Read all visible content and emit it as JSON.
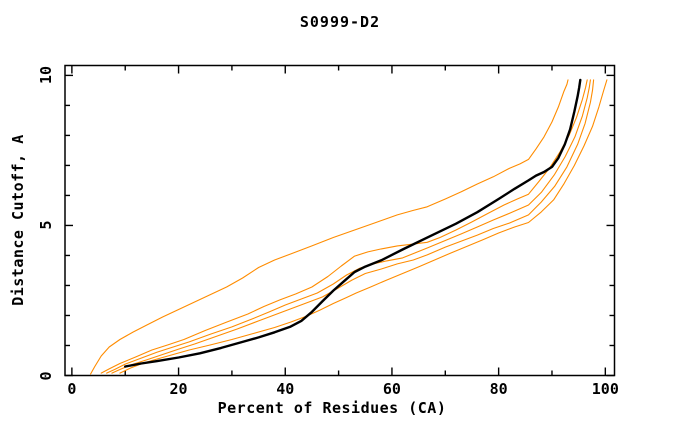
{
  "chart_data": {
    "type": "line",
    "title": "S0999-D2",
    "xlabel": "Percent of Residues (CA)",
    "ylabel": "Distance Cutoff, A",
    "xlim": [
      -1.29,
      101.72
    ],
    "ylim": [
      0,
      10.33
    ],
    "x_major_ticks": [
      0,
      20,
      40,
      60,
      80,
      100
    ],
    "x_minor_ticks": [
      10,
      30,
      50,
      70,
      90
    ],
    "y_major_ticks": [
      0,
      5,
      10
    ],
    "y_minor_ticks": [
      1,
      2,
      3,
      4,
      6,
      7,
      8,
      9
    ],
    "grid": false,
    "legend": "none",
    "axis_color": "#000000",
    "series": [
      {
        "name": "orange-model-1",
        "color": "#ff8c00",
        "width": 1.1,
        "points": [
          [
            3.5,
            0.05
          ],
          [
            4.3,
            0.3
          ],
          [
            5.5,
            0.65
          ],
          [
            7,
            0.95
          ],
          [
            9,
            1.2
          ],
          [
            11.5,
            1.45
          ],
          [
            14,
            1.68
          ],
          [
            17,
            1.95
          ],
          [
            20,
            2.2
          ],
          [
            23,
            2.45
          ],
          [
            26,
            2.7
          ],
          [
            29,
            2.95
          ],
          [
            32,
            3.25
          ],
          [
            35,
            3.6
          ],
          [
            38,
            3.85
          ],
          [
            41,
            4.05
          ],
          [
            45,
            4.32
          ],
          [
            49,
            4.6
          ],
          [
            53,
            4.85
          ],
          [
            57,
            5.1
          ],
          [
            61,
            5.35
          ],
          [
            64,
            5.5
          ],
          [
            66.6,
            5.62
          ],
          [
            70,
            5.88
          ],
          [
            73,
            6.12
          ],
          [
            76,
            6.38
          ],
          [
            79,
            6.62
          ],
          [
            82,
            6.9
          ],
          [
            84,
            7.05
          ],
          [
            85.6,
            7.2
          ],
          [
            87,
            7.55
          ],
          [
            88.5,
            7.95
          ],
          [
            90,
            8.45
          ],
          [
            91.2,
            8.95
          ],
          [
            92.2,
            9.45
          ],
          [
            92.8,
            9.7
          ],
          [
            93,
            9.85
          ]
        ]
      },
      {
        "name": "orange-model-2",
        "color": "#ff8c00",
        "width": 1.1,
        "points": [
          [
            5.5,
            0.08
          ],
          [
            7,
            0.22
          ],
          [
            9,
            0.4
          ],
          [
            12,
            0.62
          ],
          [
            15,
            0.85
          ],
          [
            18,
            1.02
          ],
          [
            21,
            1.2
          ],
          [
            25,
            1.5
          ],
          [
            29,
            1.78
          ],
          [
            33,
            2.05
          ],
          [
            36,
            2.3
          ],
          [
            39,
            2.52
          ],
          [
            42,
            2.72
          ],
          [
            45,
            2.95
          ],
          [
            48,
            3.3
          ],
          [
            50.5,
            3.65
          ],
          [
            53,
            3.98
          ],
          [
            55.5,
            4.12
          ],
          [
            58,
            4.22
          ],
          [
            61,
            4.32
          ],
          [
            64,
            4.38
          ],
          [
            66.6,
            4.44
          ],
          [
            69,
            4.6
          ],
          [
            72,
            4.85
          ],
          [
            75,
            5.12
          ],
          [
            78,
            5.4
          ],
          [
            81,
            5.68
          ],
          [
            83.5,
            5.88
          ],
          [
            85.6,
            6.04
          ],
          [
            87.5,
            6.45
          ],
          [
            89.5,
            6.9
          ],
          [
            91.5,
            7.45
          ],
          [
            93.2,
            8.0
          ],
          [
            94.6,
            8.6
          ],
          [
            95.7,
            9.2
          ],
          [
            96.3,
            9.6
          ],
          [
            96.6,
            9.85
          ]
        ]
      },
      {
        "name": "orange-model-3",
        "color": "#ff8c00",
        "width": 1.1,
        "points": [
          [
            6.5,
            0.08
          ],
          [
            8,
            0.2
          ],
          [
            10,
            0.38
          ],
          [
            13,
            0.58
          ],
          [
            16,
            0.78
          ],
          [
            19,
            0.95
          ],
          [
            22,
            1.12
          ],
          [
            26,
            1.38
          ],
          [
            30,
            1.62
          ],
          [
            34,
            1.9
          ],
          [
            37,
            2.12
          ],
          [
            40,
            2.35
          ],
          [
            43,
            2.55
          ],
          [
            46,
            2.75
          ],
          [
            49,
            3.05
          ],
          [
            51.5,
            3.35
          ],
          [
            54,
            3.58
          ],
          [
            56.5,
            3.72
          ],
          [
            59,
            3.82
          ],
          [
            62,
            3.92
          ],
          [
            66.6,
            4.25
          ],
          [
            70,
            4.5
          ],
          [
            73,
            4.72
          ],
          [
            76,
            4.95
          ],
          [
            79,
            5.18
          ],
          [
            82,
            5.4
          ],
          [
            85.6,
            5.68
          ],
          [
            88,
            6.1
          ],
          [
            90.5,
            6.7
          ],
          [
            92.5,
            7.3
          ],
          [
            94.3,
            7.95
          ],
          [
            95.7,
            8.65
          ],
          [
            96.6,
            9.25
          ],
          [
            97,
            9.6
          ],
          [
            97.2,
            9.85
          ]
        ]
      },
      {
        "name": "orange-model-4",
        "color": "#ff8c00",
        "width": 1.1,
        "points": [
          [
            7.5,
            0.08
          ],
          [
            9,
            0.2
          ],
          [
            11,
            0.35
          ],
          [
            14,
            0.52
          ],
          [
            17,
            0.7
          ],
          [
            20,
            0.88
          ],
          [
            23,
            1.05
          ],
          [
            27,
            1.3
          ],
          [
            31,
            1.55
          ],
          [
            35,
            1.82
          ],
          [
            38,
            2.02
          ],
          [
            41,
            2.22
          ],
          [
            44,
            2.42
          ],
          [
            47,
            2.62
          ],
          [
            50,
            2.92
          ],
          [
            52.5,
            3.18
          ],
          [
            55,
            3.4
          ],
          [
            58,
            3.55
          ],
          [
            61,
            3.72
          ],
          [
            64,
            3.85
          ],
          [
            66.6,
            4.02
          ],
          [
            70,
            4.28
          ],
          [
            73,
            4.48
          ],
          [
            76,
            4.68
          ],
          [
            79,
            4.9
          ],
          [
            82,
            5.08
          ],
          [
            85.6,
            5.35
          ],
          [
            88,
            5.78
          ],
          [
            90.5,
            6.3
          ],
          [
            92.8,
            6.95
          ],
          [
            94.8,
            7.7
          ],
          [
            96.2,
            8.4
          ],
          [
            97.2,
            9.1
          ],
          [
            97.6,
            9.5
          ],
          [
            97.8,
            9.85
          ]
        ]
      },
      {
        "name": "orange-model-5",
        "color": "#ff8c00",
        "width": 1.1,
        "points": [
          [
            9,
            0.08
          ],
          [
            11,
            0.25
          ],
          [
            13.5,
            0.42
          ],
          [
            16,
            0.55
          ],
          [
            19,
            0.7
          ],
          [
            22,
            0.85
          ],
          [
            26,
            1.02
          ],
          [
            30,
            1.2
          ],
          [
            34,
            1.4
          ],
          [
            38,
            1.6
          ],
          [
            41,
            1.78
          ],
          [
            44,
            1.98
          ],
          [
            46.5,
            2.18
          ],
          [
            49,
            2.4
          ],
          [
            51.5,
            2.6
          ],
          [
            53.3,
            2.75
          ],
          [
            56,
            2.95
          ],
          [
            59,
            3.18
          ],
          [
            62,
            3.4
          ],
          [
            65,
            3.62
          ],
          [
            68,
            3.85
          ],
          [
            71,
            4.08
          ],
          [
            74,
            4.3
          ],
          [
            77,
            4.52
          ],
          [
            80,
            4.75
          ],
          [
            83,
            4.95
          ],
          [
            85.6,
            5.1
          ],
          [
            88,
            5.45
          ],
          [
            90.3,
            5.85
          ],
          [
            92.3,
            6.4
          ],
          [
            94.2,
            7.0
          ],
          [
            96,
            7.65
          ],
          [
            97.6,
            8.3
          ],
          [
            98.8,
            8.95
          ],
          [
            99.7,
            9.5
          ],
          [
            100.3,
            9.85
          ]
        ]
      },
      {
        "name": "black-model",
        "color": "#000000",
        "width": 2.4,
        "points": [
          [
            10,
            0.3
          ],
          [
            13,
            0.4
          ],
          [
            16,
            0.48
          ],
          [
            20,
            0.6
          ],
          [
            24,
            0.74
          ],
          [
            28,
            0.92
          ],
          [
            32,
            1.12
          ],
          [
            35,
            1.27
          ],
          [
            38,
            1.44
          ],
          [
            41,
            1.63
          ],
          [
            43,
            1.82
          ],
          [
            45,
            2.12
          ],
          [
            47,
            2.48
          ],
          [
            49,
            2.83
          ],
          [
            51,
            3.14
          ],
          [
            53,
            3.45
          ],
          [
            55,
            3.63
          ],
          [
            58,
            3.84
          ],
          [
            62,
            4.2
          ],
          [
            67,
            4.63
          ],
          [
            72,
            5.06
          ],
          [
            76,
            5.44
          ],
          [
            80,
            5.88
          ],
          [
            83,
            6.22
          ],
          [
            85.6,
            6.5
          ],
          [
            87,
            6.66
          ],
          [
            88.5,
            6.78
          ],
          [
            90,
            6.95
          ],
          [
            91.2,
            7.25
          ],
          [
            92.4,
            7.7
          ],
          [
            93.4,
            8.2
          ],
          [
            94.2,
            8.8
          ],
          [
            94.8,
            9.3
          ],
          [
            95.1,
            9.6
          ],
          [
            95.3,
            9.85
          ]
        ]
      }
    ]
  }
}
